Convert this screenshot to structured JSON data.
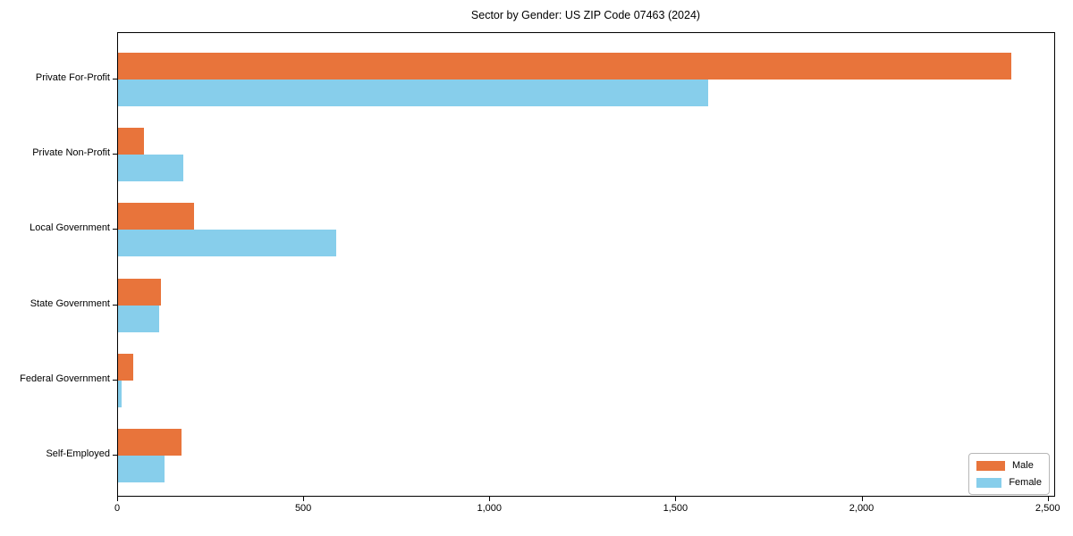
{
  "chart_data": {
    "type": "bar",
    "orientation": "horizontal",
    "title": "Sector by Gender: US ZIP Code 07463 (2024)",
    "categories": [
      "Private For-Profit",
      "Private Non-Profit",
      "Local Government",
      "State Government",
      "Federal Government",
      "Self-Employed"
    ],
    "series": [
      {
        "name": "Male",
        "color": "#e8743b",
        "values": [
          2400,
          70,
          205,
          115,
          40,
          170
        ]
      },
      {
        "name": "Female",
        "color": "#87ceeb",
        "values": [
          1585,
          175,
          585,
          110,
          10,
          125
        ]
      }
    ],
    "xlabel": "",
    "ylabel": "",
    "xlim": [
      0,
      2520
    ],
    "x_ticks": [
      0,
      500,
      1000,
      1500,
      2000,
      2500
    ],
    "x_tick_labels": [
      "0",
      "500",
      "1,000",
      "1,500",
      "2,000",
      "2,500"
    ],
    "grid": false,
    "legend_position": "lower right",
    "background_color": "#ffffff",
    "spine_color": "#000000"
  }
}
